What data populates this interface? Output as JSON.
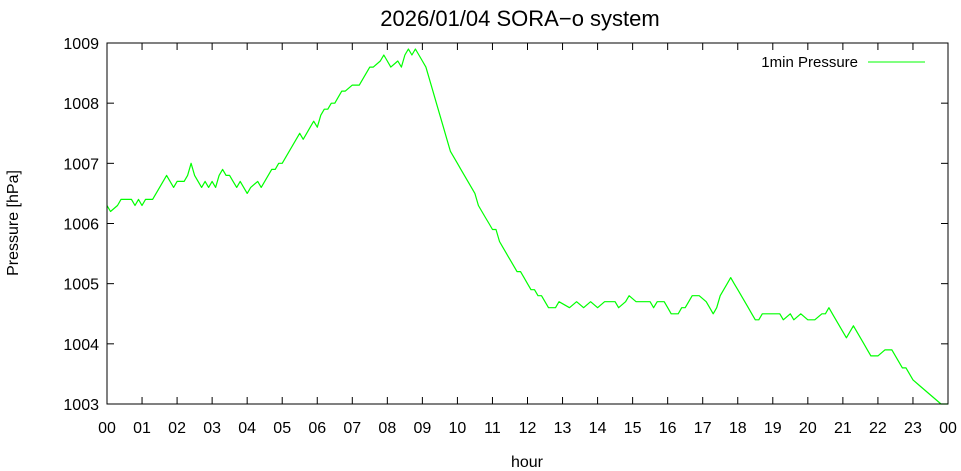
{
  "chart_data": {
    "type": "line",
    "title": "2026/01/04 SORA−o system",
    "xlabel": "hour",
    "ylabel": "Pressure [hPa]",
    "xlim": [
      0,
      24
    ],
    "ylim": [
      1003,
      1009
    ],
    "grid": false,
    "legend_position": "top-right",
    "x_tick_labels": [
      "00",
      "01",
      "02",
      "03",
      "04",
      "05",
      "06",
      "07",
      "08",
      "09",
      "10",
      "11",
      "12",
      "13",
      "14",
      "15",
      "16",
      "17",
      "18",
      "19",
      "20",
      "21",
      "22",
      "23",
      "00"
    ],
    "y_tick_labels": [
      "1003",
      "1004",
      "1005",
      "1006",
      "1007",
      "1008",
      "1009"
    ],
    "series": [
      {
        "name": "1min Pressure",
        "color": "#00ff00",
        "points": [
          [
            0.0,
            1006.3
          ],
          [
            0.1,
            1006.2
          ],
          [
            0.3,
            1006.3
          ],
          [
            0.4,
            1006.4
          ],
          [
            0.7,
            1006.4
          ],
          [
            0.8,
            1006.3
          ],
          [
            0.9,
            1006.4
          ],
          [
            1.0,
            1006.3
          ],
          [
            1.1,
            1006.4
          ],
          [
            1.3,
            1006.4
          ],
          [
            1.4,
            1006.5
          ],
          [
            1.5,
            1006.6
          ],
          [
            1.6,
            1006.7
          ],
          [
            1.7,
            1006.8
          ],
          [
            1.8,
            1006.7
          ],
          [
            1.9,
            1006.6
          ],
          [
            2.0,
            1006.7
          ],
          [
            2.2,
            1006.7
          ],
          [
            2.3,
            1006.8
          ],
          [
            2.4,
            1007.0
          ],
          [
            2.5,
            1006.8
          ],
          [
            2.6,
            1006.7
          ],
          [
            2.7,
            1006.6
          ],
          [
            2.8,
            1006.7
          ],
          [
            2.9,
            1006.6
          ],
          [
            3.0,
            1006.7
          ],
          [
            3.1,
            1006.6
          ],
          [
            3.2,
            1006.8
          ],
          [
            3.3,
            1006.9
          ],
          [
            3.4,
            1006.8
          ],
          [
            3.5,
            1006.8
          ],
          [
            3.6,
            1006.7
          ],
          [
            3.7,
            1006.6
          ],
          [
            3.8,
            1006.7
          ],
          [
            3.9,
            1006.6
          ],
          [
            4.0,
            1006.5
          ],
          [
            4.1,
            1006.6
          ],
          [
            4.3,
            1006.7
          ],
          [
            4.4,
            1006.6
          ],
          [
            4.5,
            1006.7
          ],
          [
            4.6,
            1006.8
          ],
          [
            4.7,
            1006.9
          ],
          [
            4.8,
            1006.9
          ],
          [
            4.9,
            1007.0
          ],
          [
            5.0,
            1007.0
          ],
          [
            5.1,
            1007.1
          ],
          [
            5.2,
            1007.2
          ],
          [
            5.3,
            1007.3
          ],
          [
            5.4,
            1007.4
          ],
          [
            5.5,
            1007.5
          ],
          [
            5.6,
            1007.4
          ],
          [
            5.7,
            1007.5
          ],
          [
            5.8,
            1007.6
          ],
          [
            5.9,
            1007.7
          ],
          [
            6.0,
            1007.6
          ],
          [
            6.1,
            1007.8
          ],
          [
            6.2,
            1007.9
          ],
          [
            6.3,
            1007.9
          ],
          [
            6.4,
            1008.0
          ],
          [
            6.5,
            1008.0
          ],
          [
            6.6,
            1008.1
          ],
          [
            6.7,
            1008.2
          ],
          [
            6.8,
            1008.2
          ],
          [
            7.0,
            1008.3
          ],
          [
            7.2,
            1008.3
          ],
          [
            7.3,
            1008.4
          ],
          [
            7.4,
            1008.5
          ],
          [
            7.5,
            1008.6
          ],
          [
            7.6,
            1008.6
          ],
          [
            7.8,
            1008.7
          ],
          [
            7.9,
            1008.8
          ],
          [
            8.0,
            1008.7
          ],
          [
            8.1,
            1008.6
          ],
          [
            8.3,
            1008.7
          ],
          [
            8.4,
            1008.6
          ],
          [
            8.5,
            1008.8
          ],
          [
            8.6,
            1008.9
          ],
          [
            8.7,
            1008.8
          ],
          [
            8.8,
            1008.9
          ],
          [
            8.9,
            1008.8
          ],
          [
            9.0,
            1008.7
          ],
          [
            9.1,
            1008.6
          ],
          [
            9.2,
            1008.4
          ],
          [
            9.3,
            1008.2
          ],
          [
            9.4,
            1008.0
          ],
          [
            9.5,
            1007.8
          ],
          [
            9.6,
            1007.6
          ],
          [
            9.7,
            1007.4
          ],
          [
            9.8,
            1007.2
          ],
          [
            9.9,
            1007.1
          ],
          [
            10.0,
            1007.0
          ],
          [
            10.1,
            1006.9
          ],
          [
            10.2,
            1006.8
          ],
          [
            10.3,
            1006.7
          ],
          [
            10.4,
            1006.6
          ],
          [
            10.5,
            1006.5
          ],
          [
            10.6,
            1006.3
          ],
          [
            10.7,
            1006.2
          ],
          [
            10.8,
            1006.1
          ],
          [
            10.9,
            1006.0
          ],
          [
            11.0,
            1005.9
          ],
          [
            11.1,
            1005.9
          ],
          [
            11.2,
            1005.7
          ],
          [
            11.3,
            1005.6
          ],
          [
            11.4,
            1005.5
          ],
          [
            11.5,
            1005.4
          ],
          [
            11.6,
            1005.3
          ],
          [
            11.7,
            1005.2
          ],
          [
            11.8,
            1005.2
          ],
          [
            11.9,
            1005.1
          ],
          [
            12.0,
            1005.0
          ],
          [
            12.1,
            1004.9
          ],
          [
            12.2,
            1004.9
          ],
          [
            12.3,
            1004.8
          ],
          [
            12.4,
            1004.8
          ],
          [
            12.5,
            1004.7
          ],
          [
            12.6,
            1004.6
          ],
          [
            12.8,
            1004.6
          ],
          [
            12.9,
            1004.7
          ],
          [
            13.2,
            1004.6
          ],
          [
            13.4,
            1004.7
          ],
          [
            13.6,
            1004.6
          ],
          [
            13.8,
            1004.7
          ],
          [
            14.0,
            1004.6
          ],
          [
            14.2,
            1004.7
          ],
          [
            14.5,
            1004.7
          ],
          [
            14.6,
            1004.6
          ],
          [
            14.8,
            1004.7
          ],
          [
            14.9,
            1004.8
          ],
          [
            15.1,
            1004.7
          ],
          [
            15.5,
            1004.7
          ],
          [
            15.6,
            1004.6
          ],
          [
            15.7,
            1004.7
          ],
          [
            15.9,
            1004.7
          ],
          [
            16.0,
            1004.6
          ],
          [
            16.1,
            1004.5
          ],
          [
            16.3,
            1004.5
          ],
          [
            16.4,
            1004.6
          ],
          [
            16.5,
            1004.6
          ],
          [
            16.6,
            1004.7
          ],
          [
            16.7,
            1004.8
          ],
          [
            16.9,
            1004.8
          ],
          [
            17.1,
            1004.7
          ],
          [
            17.2,
            1004.6
          ],
          [
            17.3,
            1004.5
          ],
          [
            17.4,
            1004.6
          ],
          [
            17.5,
            1004.8
          ],
          [
            17.6,
            1004.9
          ],
          [
            17.7,
            1005.0
          ],
          [
            17.8,
            1005.1
          ],
          [
            17.9,
            1005.0
          ],
          [
            18.0,
            1004.9
          ],
          [
            18.1,
            1004.8
          ],
          [
            18.2,
            1004.7
          ],
          [
            18.3,
            1004.6
          ],
          [
            18.4,
            1004.5
          ],
          [
            18.5,
            1004.4
          ],
          [
            18.6,
            1004.4
          ],
          [
            18.7,
            1004.5
          ],
          [
            18.8,
            1004.5
          ],
          [
            19.0,
            1004.5
          ],
          [
            19.2,
            1004.5
          ],
          [
            19.3,
            1004.4
          ],
          [
            19.5,
            1004.5
          ],
          [
            19.6,
            1004.4
          ],
          [
            19.8,
            1004.5
          ],
          [
            20.0,
            1004.4
          ],
          [
            20.2,
            1004.4
          ],
          [
            20.4,
            1004.5
          ],
          [
            20.5,
            1004.5
          ],
          [
            20.6,
            1004.6
          ],
          [
            20.7,
            1004.5
          ],
          [
            20.8,
            1004.4
          ],
          [
            20.9,
            1004.3
          ],
          [
            21.0,
            1004.2
          ],
          [
            21.1,
            1004.1
          ],
          [
            21.2,
            1004.2
          ],
          [
            21.3,
            1004.3
          ],
          [
            21.4,
            1004.2
          ],
          [
            21.5,
            1004.1
          ],
          [
            21.6,
            1004.0
          ],
          [
            21.7,
            1003.9
          ],
          [
            21.8,
            1003.8
          ],
          [
            22.0,
            1003.8
          ],
          [
            22.2,
            1003.9
          ],
          [
            22.4,
            1003.9
          ],
          [
            22.5,
            1003.8
          ],
          [
            22.6,
            1003.7
          ],
          [
            22.7,
            1003.6
          ],
          [
            22.8,
            1003.6
          ],
          [
            22.9,
            1003.5
          ],
          [
            23.0,
            1003.4
          ],
          [
            23.2,
            1003.3
          ],
          [
            23.4,
            1003.2
          ],
          [
            23.6,
            1003.1
          ],
          [
            23.8,
            1003.0
          ],
          [
            23.9,
            1003.0
          ],
          [
            24.0,
            1003.0
          ]
        ]
      }
    ]
  }
}
